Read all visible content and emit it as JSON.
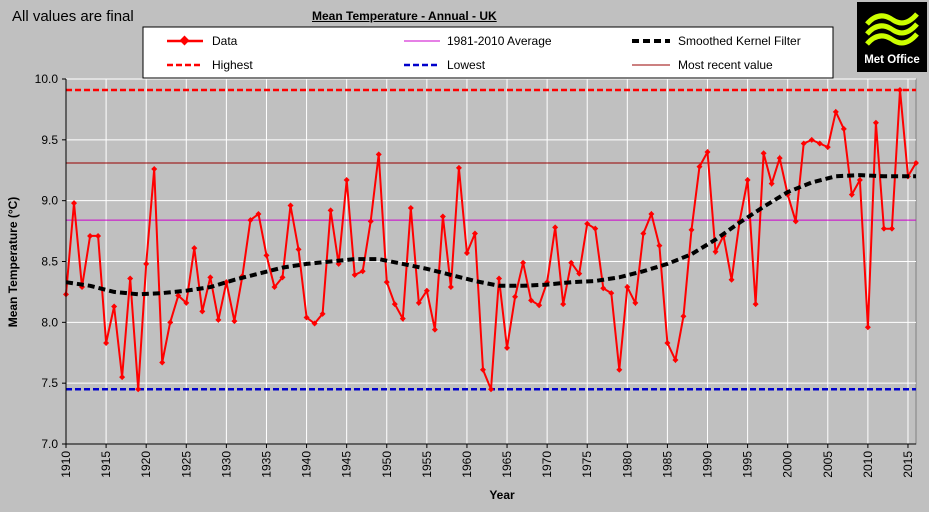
{
  "status_text": "All values are final",
  "logo": {
    "text": "Met Office",
    "icon": "met-office-logo"
  },
  "chart_data": {
    "type": "line",
    "title": "Mean Temperature  - Annual - UK",
    "xlabel": "Year",
    "ylabel": "Mean Temperature (°C)",
    "xlim": [
      1910,
      2016
    ],
    "ylim": [
      7.0,
      10.0
    ],
    "yticks": [
      "7.0",
      "7.5",
      "8.0",
      "8.5",
      "9.0",
      "9.5",
      "10.0"
    ],
    "xticks": [
      "1910",
      "1915",
      "1920",
      "1925",
      "1930",
      "1935",
      "1940",
      "1945",
      "1950",
      "1955",
      "1960",
      "1965",
      "1970",
      "1975",
      "1980",
      "1985",
      "1990",
      "1995",
      "2000",
      "2005",
      "2010",
      "2015"
    ],
    "grid": true,
    "legend": {
      "placement": "top",
      "entries": [
        "Data",
        "1981-2010 Average",
        "Smoothed Kernel Filter",
        "Highest",
        "Lowest",
        "Most recent value"
      ]
    },
    "colors": {
      "data": "#ff0000",
      "average": "#cc00cc",
      "smoothed": "#000000",
      "highest": "#ff0000",
      "lowest": "#0000cc",
      "recent": "#990000",
      "plot_bg": "#c0c0c0",
      "grid": "#ffffff"
    },
    "series": [
      {
        "name": "Data",
        "x": [
          1910,
          1911,
          1912,
          1913,
          1914,
          1915,
          1916,
          1917,
          1918,
          1919,
          1920,
          1921,
          1922,
          1923,
          1924,
          1925,
          1926,
          1927,
          1928,
          1929,
          1930,
          1931,
          1932,
          1933,
          1934,
          1935,
          1936,
          1937,
          1938,
          1939,
          1940,
          1941,
          1942,
          1943,
          1944,
          1945,
          1946,
          1947,
          1948,
          1949,
          1950,
          1951,
          1952,
          1953,
          1954,
          1955,
          1956,
          1957,
          1958,
          1959,
          1960,
          1961,
          1962,
          1963,
          1964,
          1965,
          1966,
          1967,
          1968,
          1969,
          1970,
          1971,
          1972,
          1973,
          1974,
          1975,
          1976,
          1977,
          1978,
          1979,
          1980,
          1981,
          1982,
          1983,
          1984,
          1985,
          1986,
          1987,
          1988,
          1989,
          1990,
          1991,
          1992,
          1993,
          1994,
          1995,
          1996,
          1997,
          1998,
          1999,
          2000,
          2001,
          2002,
          2003,
          2004,
          2005,
          2006,
          2007,
          2008,
          2009,
          2010,
          2011,
          2012,
          2013,
          2014,
          2015,
          2016
        ],
        "values": [
          8.23,
          8.98,
          8.29,
          8.71,
          8.71,
          7.83,
          8.13,
          7.55,
          8.36,
          7.45,
          8.48,
          9.26,
          7.67,
          8.0,
          8.22,
          8.16,
          8.61,
          8.09,
          8.37,
          8.02,
          8.33,
          8.01,
          8.38,
          8.84,
          8.89,
          8.55,
          8.29,
          8.37,
          8.96,
          8.6,
          8.04,
          7.99,
          8.07,
          8.92,
          8.48,
          9.17,
          8.39,
          8.42,
          8.83,
          9.38,
          8.33,
          8.15,
          8.03,
          8.94,
          8.16,
          8.26,
          7.94,
          8.87,
          8.29,
          9.27,
          8.57,
          8.73,
          7.61,
          7.45,
          8.36,
          7.79,
          8.21,
          8.49,
          8.18,
          8.14,
          8.33,
          8.78,
          8.15,
          8.49,
          8.4,
          8.81,
          8.77,
          8.28,
          8.24,
          7.61,
          8.29,
          8.16,
          8.73,
          8.89,
          8.63,
          7.83,
          7.69,
          8.05,
          8.76,
          9.28,
          9.4,
          8.58,
          8.71,
          8.35,
          8.83,
          9.17,
          8.15,
          9.39,
          9.14,
          9.35,
          9.05,
          8.83,
          9.47,
          9.5,
          9.47,
          9.44,
          9.73,
          9.59,
          9.05,
          9.17,
          7.96,
          9.64,
          8.77,
          8.77,
          9.91,
          9.2,
          9.31
        ]
      },
      {
        "name": "Smoothed Kernel Filter",
        "x": [
          1910,
          1913,
          1916,
          1919,
          1922,
          1925,
          1928,
          1931,
          1934,
          1937,
          1940,
          1943,
          1946,
          1949,
          1952,
          1955,
          1958,
          1961,
          1964,
          1967,
          1970,
          1973,
          1976,
          1979,
          1982,
          1985,
          1988,
          1991,
          1994,
          1997,
          2000,
          2003,
          2006,
          2009,
          2012,
          2016
        ],
        "values": [
          8.33,
          8.3,
          8.25,
          8.23,
          8.24,
          8.26,
          8.29,
          8.35,
          8.4,
          8.45,
          8.48,
          8.5,
          8.52,
          8.52,
          8.48,
          8.44,
          8.39,
          8.34,
          8.3,
          8.3,
          8.31,
          8.33,
          8.34,
          8.37,
          8.42,
          8.48,
          8.56,
          8.68,
          8.82,
          8.95,
          9.07,
          9.15,
          9.2,
          9.21,
          9.2,
          9.2
        ]
      }
    ],
    "reference_lines": [
      {
        "name": "1981-2010 Average",
        "value": 8.84
      },
      {
        "name": "Highest",
        "value": 9.91
      },
      {
        "name": "Lowest",
        "value": 7.45
      },
      {
        "name": "Most recent value",
        "value": 9.31
      }
    ]
  }
}
